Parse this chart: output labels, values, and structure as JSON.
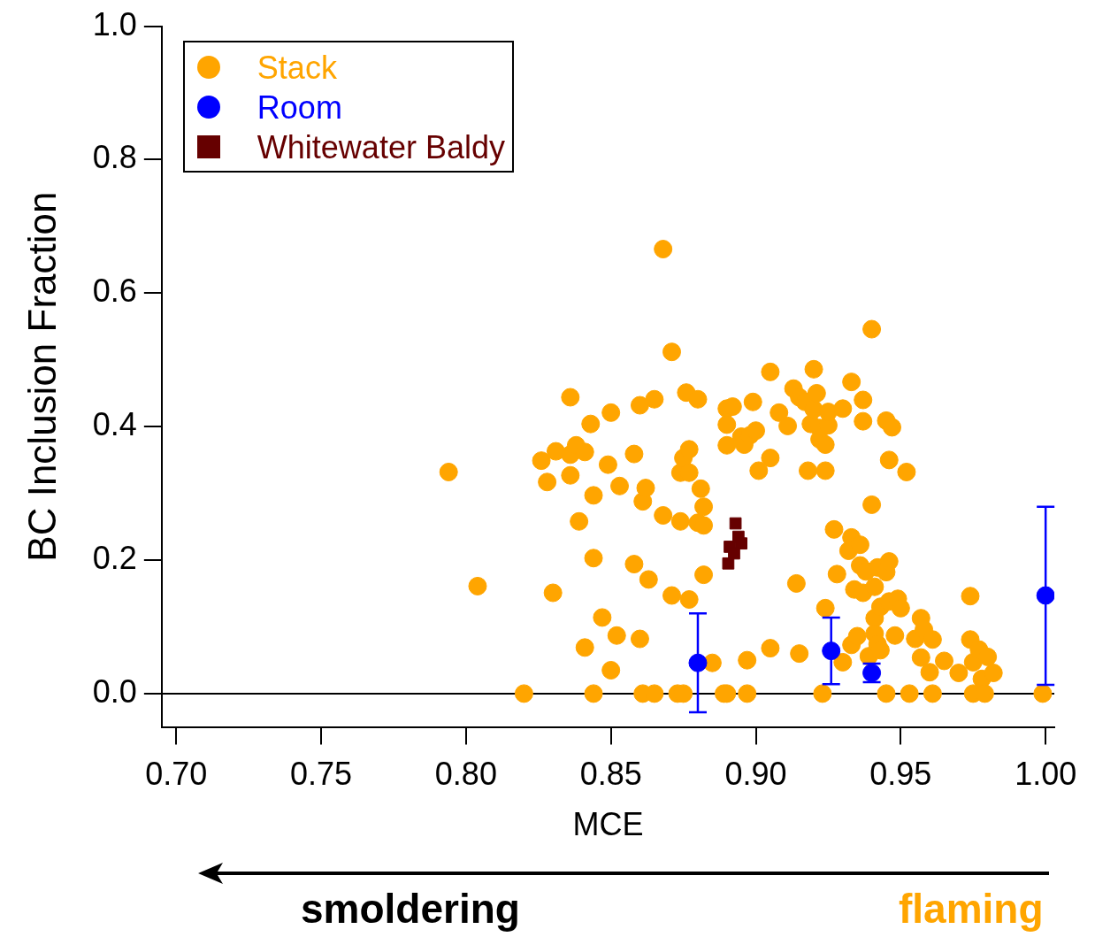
{
  "chart_data": {
    "type": "scatter",
    "xlabel": "MCE",
    "ylabel": "BC Inclusion Fraction",
    "xlim": [
      0.695,
      1.003
    ],
    "ylim": [
      -0.05,
      1.0
    ],
    "xticks": [
      {
        "value": 0.7,
        "label": "0.70"
      },
      {
        "value": 0.75,
        "label": "0.75"
      },
      {
        "value": 0.8,
        "label": "0.80"
      },
      {
        "value": 0.85,
        "label": "0.85"
      },
      {
        "value": 0.9,
        "label": "0.90"
      },
      {
        "value": 0.95,
        "label": "0.95"
      },
      {
        "value": 1.0,
        "label": "1.00"
      }
    ],
    "yticks": [
      {
        "value": 0,
        "label": "0.0"
      },
      {
        "value": 0.2,
        "label": "0.2"
      },
      {
        "value": 0.4,
        "label": "0.4"
      },
      {
        "value": 0.6,
        "label": "0.6"
      },
      {
        "value": 0.8,
        "label": "0.8"
      },
      {
        "value": 1.0,
        "label": "1.0"
      }
    ],
    "grid": false,
    "legend": "top left",
    "ref_lines": [
      {
        "axis": "y",
        "value": 0,
        "color": "#000000"
      }
    ],
    "annotations": [
      "smoldering",
      "flaming"
    ],
    "series": [
      {
        "name": "Stack",
        "color": "#ffa500",
        "marker": "circle",
        "x": [
          0.794,
          0.804,
          0.82,
          0.826,
          0.828,
          0.83,
          0.831,
          0.836,
          0.836,
          0.836,
          0.838,
          0.839,
          0.841,
          0.841,
          0.843,
          0.844,
          0.844,
          0.844,
          0.847,
          0.849,
          0.85,
          0.85,
          0.852,
          0.853,
          0.858,
          0.858,
          0.86,
          0.86,
          0.861,
          0.861,
          0.862,
          0.863,
          0.865,
          0.865,
          0.868,
          0.868,
          0.871,
          0.871,
          0.873,
          0.874,
          0.874,
          0.875,
          0.875,
          0.876,
          0.877,
          0.877,
          0.877,
          0.88,
          0.88,
          0.881,
          0.882,
          0.882,
          0.882,
          0.885,
          0.889,
          0.89,
          0.89,
          0.89,
          0.89,
          0.892,
          0.895,
          0.896,
          0.897,
          0.897,
          0.898,
          0.899,
          0.9,
          0.901,
          0.905,
          0.905,
          0.905,
          0.908,
          0.911,
          0.913,
          0.914,
          0.915,
          0.915,
          0.917,
          0.919,
          0.918,
          0.92,
          0.92,
          0.921,
          0.922,
          0.922,
          0.923,
          0.924,
          0.924,
          0.924,
          0.925,
          0.925,
          0.927,
          0.928,
          0.93,
          0.93,
          0.932,
          0.933,
          0.933,
          0.933,
          0.934,
          0.935,
          0.936,
          0.936,
          0.937,
          0.937,
          0.937,
          0.938,
          0.939,
          0.94,
          0.94,
          0.941,
          0.941,
          0.941,
          0.942,
          0.942,
          0.943,
          0.943,
          0.945,
          0.945,
          0.945,
          0.946,
          0.946,
          0.946,
          0.947,
          0.948,
          0.949,
          0.95,
          0.952,
          0.953,
          0.955,
          0.957,
          0.957,
          0.958,
          0.96,
          0.961,
          0.961,
          0.965,
          0.97,
          0.974,
          0.974,
          0.975,
          0.975,
          0.977,
          0.978,
          0.979,
          0.98,
          0.982,
          0.999
        ],
        "values": [
          0.332,
          0.161,
          0,
          0.349,
          0.317,
          0.151,
          0.363,
          0.358,
          0.444,
          0.327,
          0.372,
          0.258,
          0.362,
          0.069,
          0.404,
          0.297,
          0,
          0.203,
          0.114,
          0.343,
          0.035,
          0.421,
          0.087,
          0.311,
          0.359,
          0.194,
          0.432,
          0.082,
          0,
          0.288,
          0.308,
          0.171,
          0.441,
          0,
          0.666,
          0.267,
          0.512,
          0.147,
          0,
          0.331,
          0.258,
          0,
          0.353,
          0.451,
          0.366,
          0.141,
          0.331,
          0.256,
          0.441,
          0.307,
          0.252,
          0.28,
          0.178,
          0.046,
          0,
          0.427,
          0.403,
          0.372,
          0,
          0.43,
          0.385,
          0.373,
          0.05,
          0,
          0.387,
          0.437,
          0.394,
          0.334,
          0.068,
          0.482,
          0.353,
          0.421,
          0.401,
          0.457,
          0.165,
          0.06,
          0.444,
          0.437,
          0.404,
          0.334,
          0.486,
          0.426,
          0.45,
          0.398,
          0.381,
          0,
          0.373,
          0.128,
          0.334,
          0.402,
          0.422,
          0.246,
          0.179,
          0.427,
          0.047,
          0.214,
          0.234,
          0.073,
          0.467,
          0.156,
          0.086,
          0.192,
          0.223,
          0.44,
          0.151,
          0.408,
          0.183,
          0.056,
          0.546,
          0.283,
          0.113,
          0.16,
          0.09,
          0.189,
          0.074,
          0.13,
          0.065,
          0.182,
          0,
          0.409,
          0.198,
          0.138,
          0.35,
          0.399,
          0.087,
          0.142,
          0.128,
          0.332,
          0,
          0.082,
          0.113,
          0.054,
          0.096,
          0.032,
          0,
          0.081,
          0.049,
          0.031,
          0.146,
          0.081,
          0.047,
          0,
          0.066,
          0.022,
          0,
          0.055,
          0.031,
          0
        ]
      },
      {
        "name": "Room",
        "color": "#0000ff",
        "marker": "circle",
        "x": [
          0.88,
          0.926,
          0.94,
          1.0
        ],
        "values": [
          0.046,
          0.064,
          0.031,
          0.147
        ],
        "errors": [
          [
            -0.028,
            0.12
          ],
          [
            0.014,
            0.114
          ],
          [
            0.017,
            0.045
          ],
          [
            0.013,
            0.28
          ]
        ]
      },
      {
        "name": "Whitewater Baldy",
        "color": "#660000",
        "marker": "square",
        "x": [
          0.8905,
          0.891,
          0.893,
          0.894,
          0.895,
          0.8925
        ],
        "values": [
          0.195,
          0.22,
          0.255,
          0.235,
          0.225,
          0.21
        ]
      }
    ]
  }
}
